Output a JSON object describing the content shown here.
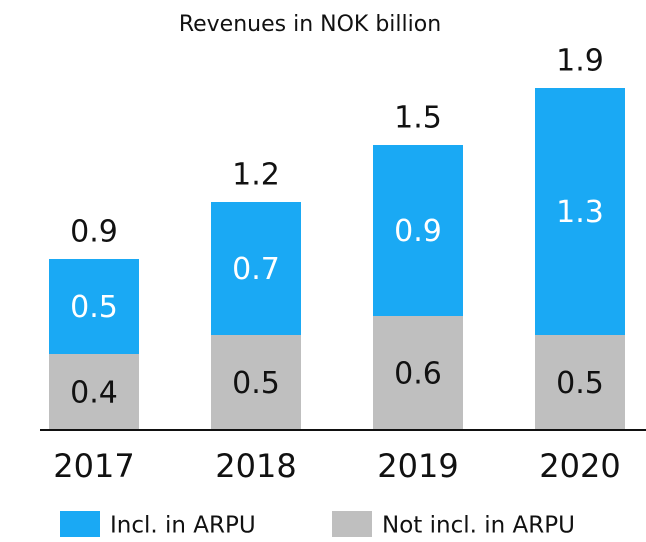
{
  "chart_data": {
    "type": "stacked_bar",
    "title": "Revenues in NOK billion",
    "categories": [
      "2017",
      "2018",
      "2019",
      "2020"
    ],
    "series": [
      {
        "name": "Not incl. in ARPU",
        "color": "#bfbfbf",
        "values": [
          0.4,
          0.5,
          0.6,
          0.5
        ]
      },
      {
        "name": "Incl. in ARPU",
        "color": "#1aa9f4",
        "values": [
          0.5,
          0.7,
          0.9,
          1.3
        ]
      }
    ],
    "totals": [
      0.9,
      1.2,
      1.5,
      1.9
    ],
    "ylim": [
      0,
      2
    ]
  }
}
